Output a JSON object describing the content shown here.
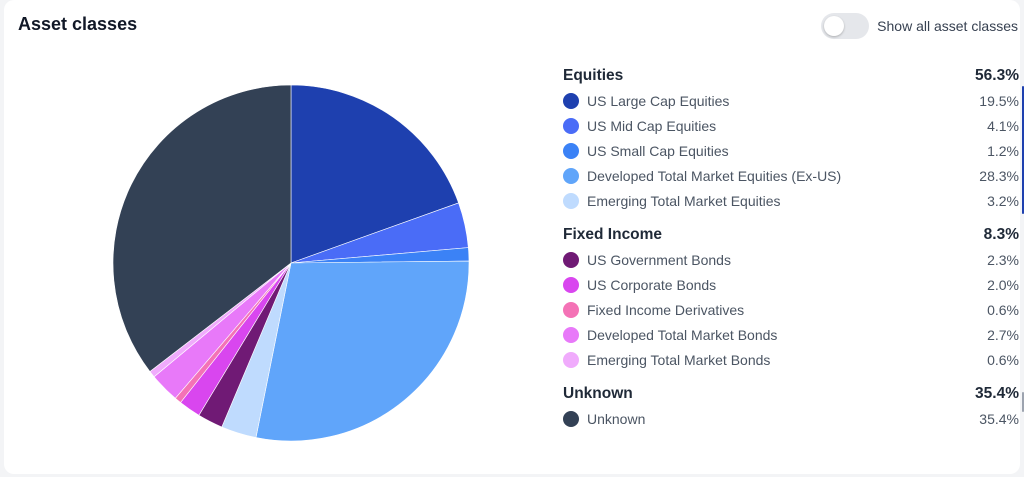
{
  "header": {
    "title": "Asset classes",
    "toggle_label": "Show all asset classes",
    "toggle_on": false
  },
  "chart_data": {
    "type": "pie",
    "groups": [
      {
        "name": "Equities",
        "total": "56.3%",
        "items": [
          {
            "label": "US Large Cap Equities",
            "pct": "19.5%",
            "value": 19.5,
            "color": "#1e40af"
          },
          {
            "label": "US Mid Cap Equities",
            "pct": "4.1%",
            "value": 4.1,
            "color": "#4a6cf7"
          },
          {
            "label": "US Small Cap Equities",
            "pct": "1.2%",
            "value": 1.2,
            "color": "#3b82f6"
          },
          {
            "label": "Developed Total Market Equities (Ex-US)",
            "pct": "28.3%",
            "value": 28.3,
            "color": "#60a5fa"
          },
          {
            "label": "Emerging Total Market Equities",
            "pct": "3.2%",
            "value": 3.2,
            "color": "#bfdbfe"
          }
        ]
      },
      {
        "name": "Fixed Income",
        "total": "8.3%",
        "items": [
          {
            "label": "US Government Bonds",
            "pct": "2.3%",
            "value": 2.3,
            "color": "#701a75"
          },
          {
            "label": "US Corporate Bonds",
            "pct": "2.0%",
            "value": 2.0,
            "color": "#d946ef"
          },
          {
            "label": "Fixed Income Derivatives",
            "pct": "0.6%",
            "value": 0.6,
            "color": "#f472b6"
          },
          {
            "label": "Developed Total Market Bonds",
            "pct": "2.7%",
            "value": 2.7,
            "color": "#e879f9"
          },
          {
            "label": "Emerging Total Market Bonds",
            "pct": "0.6%",
            "value": 0.6,
            "color": "#f0abfc"
          }
        ]
      },
      {
        "name": "Unknown",
        "total": "35.4%",
        "items": [
          {
            "label": "Unknown",
            "pct": "35.4%",
            "value": 35.4,
            "color": "#334155"
          }
        ]
      }
    ]
  }
}
